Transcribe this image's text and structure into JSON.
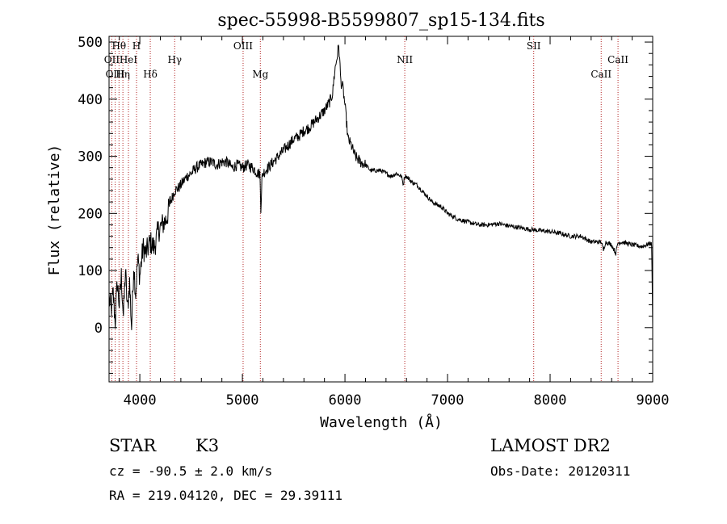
{
  "chart_data": {
    "type": "line",
    "title": "spec-55998-B5599807_sp15-134.fits",
    "xlabel": "Wavelength (Å)",
    "ylabel": "Flux (relative)",
    "xlim": [
      3700,
      9000
    ],
    "ylim": [
      -95,
      510
    ],
    "x_ticks": [
      4000,
      5000,
      6000,
      7000,
      8000,
      9000
    ],
    "y_ticks": [
      0,
      100,
      200,
      300,
      400,
      500
    ],
    "grid": false,
    "series": [
      {
        "x": [
          3700,
          3720,
          3740,
          3760,
          3780,
          3800,
          3820,
          3840,
          3860,
          3880,
          3900,
          3920,
          3940,
          3960,
          3980,
          4000,
          4030,
          4060,
          4100,
          4140,
          4180,
          4220,
          4260,
          4300,
          4340,
          4380,
          4420,
          4460,
          4500,
          4550,
          4600,
          4650,
          4700,
          4750,
          4800,
          4850,
          4900,
          4950,
          5000,
          5050,
          5100,
          5150,
          5170,
          5180,
          5190,
          5200,
          5250,
          5300,
          5350,
          5400,
          5450,
          5500,
          5550,
          5600,
          5650,
          5700,
          5750,
          5800,
          5850,
          5880,
          5900,
          5920,
          5940,
          5960,
          5980,
          6000,
          6030,
          6060,
          6100,
          6150,
          6200,
          6250,
          6300,
          6350,
          6400,
          6450,
          6500,
          6550,
          6570,
          6580,
          6600,
          6650,
          6700,
          6750,
          6800,
          6850,
          6900,
          6950,
          7000,
          7100,
          7200,
          7300,
          7400,
          7500,
          7600,
          7700,
          7800,
          7900,
          8000,
          8100,
          8200,
          8300,
          8400,
          8500,
          8520,
          8540,
          8600,
          8640,
          8660,
          8700,
          8800,
          8900,
          8980,
          8990,
          9000
        ],
        "values": [
          50,
          30,
          60,
          10,
          80,
          40,
          90,
          20,
          100,
          30,
          80,
          0,
          110,
          60,
          120,
          90,
          140,
          130,
          150,
          140,
          170,
          180,
          190,
          220,
          240,
          245,
          255,
          265,
          270,
          280,
          285,
          290,
          290,
          285,
          290,
          290,
          280,
          285,
          280,
          285,
          280,
          270,
          270,
          210,
          260,
          270,
          280,
          290,
          300,
          310,
          320,
          330,
          335,
          345,
          350,
          360,
          370,
          380,
          395,
          410,
          450,
          470,
          495,
          430,
          420,
          390,
          330,
          320,
          300,
          290,
          285,
          275,
          275,
          275,
          270,
          265,
          270,
          265,
          250,
          265,
          265,
          255,
          250,
          240,
          230,
          220,
          215,
          210,
          200,
          190,
          185,
          180,
          180,
          182,
          178,
          175,
          172,
          170,
          168,
          165,
          160,
          160,
          150,
          150,
          135,
          150,
          145,
          130,
          148,
          150,
          145,
          142,
          148,
          145,
          0
        ]
      }
    ],
    "spectral_lines": [
      {
        "label": "Hθ",
        "x": 3797,
        "row": 1
      },
      {
        "label": "H",
        "x": 3968,
        "row": 1
      },
      {
        "label": "OII",
        "x": 3727,
        "row": 2
      },
      {
        "label": "HeI",
        "x": 3889,
        "row": 2
      },
      {
        "label": "OIII",
        "x": 3760,
        "row": 3
      },
      {
        "label": "Hη",
        "x": 3835,
        "row": 3
      },
      {
        "label": "Hγ",
        "x": 4340,
        "row": 2
      },
      {
        "label": "Hδ",
        "x": 4102,
        "row": 3
      },
      {
        "label": "OIII",
        "x": 5007,
        "row": 1
      },
      {
        "label": "Mg",
        "x": 5175,
        "row": 3
      },
      {
        "label": "NII",
        "x": 6583,
        "row": 2
      },
      {
        "label": "SII",
        "x": 7840,
        "row": 1
      },
      {
        "label": "CaII",
        "x": 8662,
        "row": 2
      },
      {
        "label": "CaII",
        "x": 8498,
        "row": 3
      }
    ]
  },
  "info": {
    "object_class": "STAR",
    "subclass": "K3",
    "survey": "LAMOST DR2",
    "cz": "cz = -90.5 ± 2.0 km/s",
    "obs_date": "Obs-Date: 20120311",
    "coords": "RA = 219.04120, DEC =  29.39111"
  }
}
